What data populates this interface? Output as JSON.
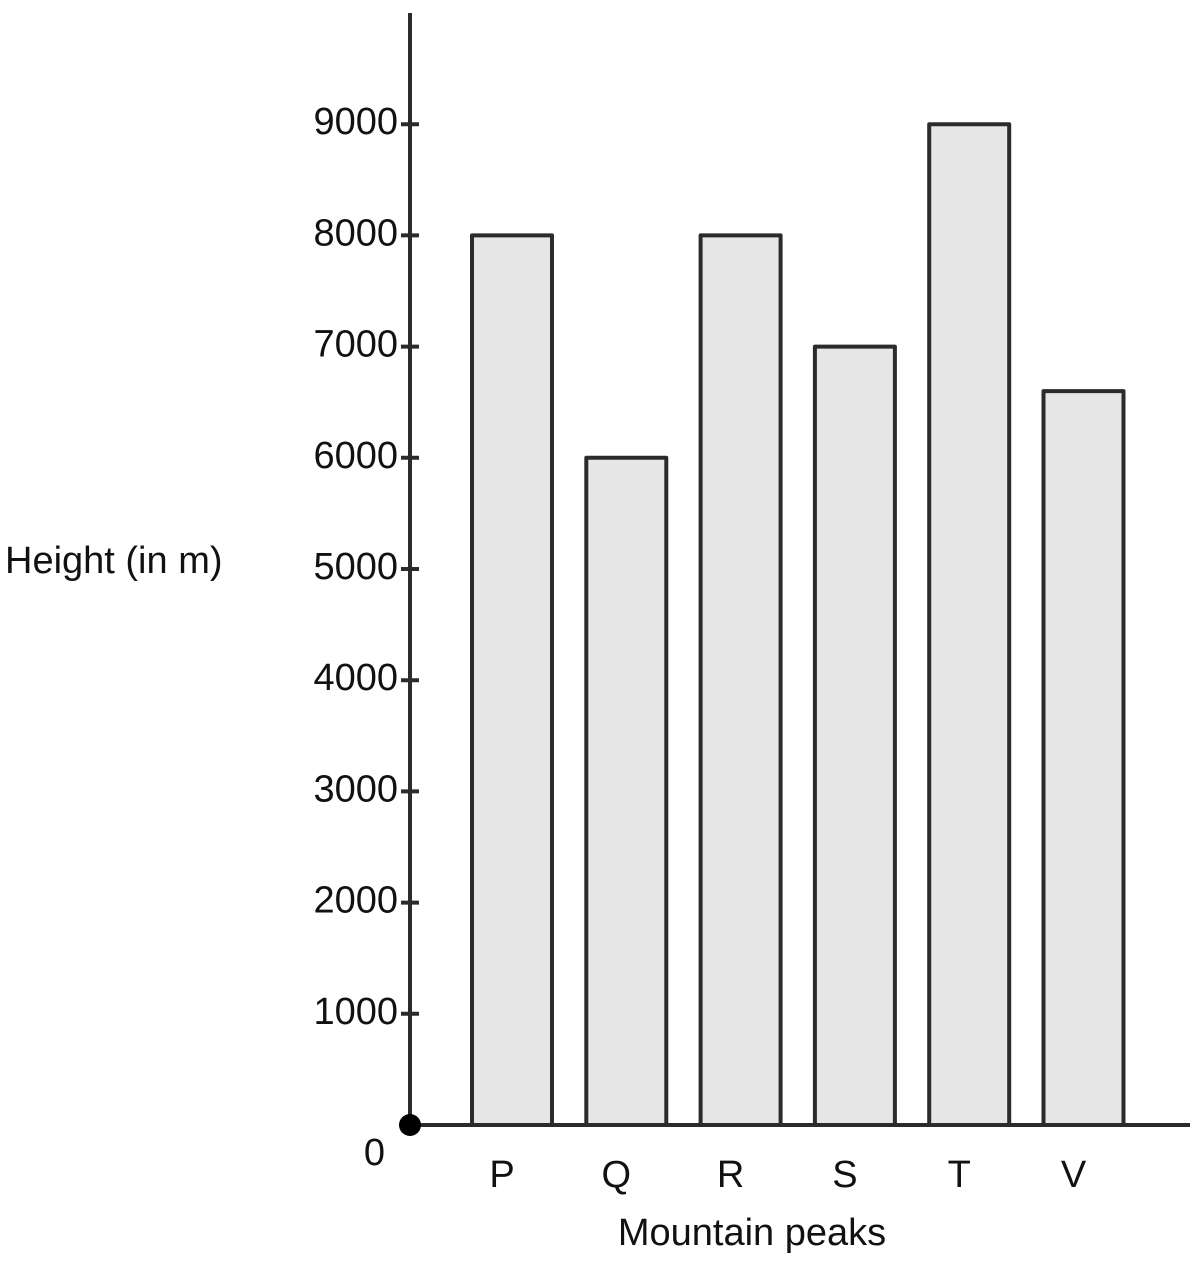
{
  "chart_data": {
    "type": "bar",
    "x_label": "Mountain peaks",
    "y_label": "Height (in m)",
    "categories": [
      "P",
      "Q",
      "R",
      "S",
      "T",
      "V"
    ],
    "values": [
      8000,
      6000,
      8000,
      7000,
      9000,
      6600
    ],
    "color": "#e6e6e6",
    "ylim": [
      0,
      10000
    ],
    "yticks": [
      0,
      1000,
      2000,
      3000,
      4000,
      5000,
      6000,
      7000,
      8000,
      9000
    ],
    "grid": false
  }
}
